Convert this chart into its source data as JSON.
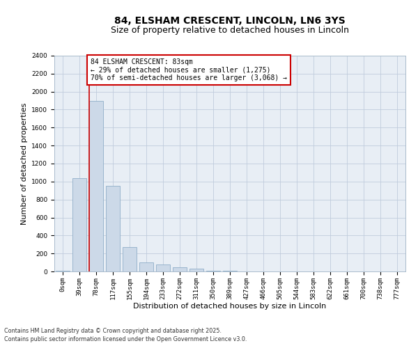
{
  "title_line1": "84, ELSHAM CRESCENT, LINCOLN, LN6 3YS",
  "title_line2": "Size of property relative to detached houses in Lincoln",
  "xlabel": "Distribution of detached houses by size in Lincoln",
  "ylabel": "Number of detached properties",
  "bar_color": "#ccd9e8",
  "bar_edge_color": "#90aec8",
  "vline_color": "#cc0000",
  "vline_position": 2,
  "categories": [
    "0sqm",
    "39sqm",
    "78sqm",
    "117sqm",
    "155sqm",
    "194sqm",
    "233sqm",
    "272sqm",
    "311sqm",
    "350sqm",
    "389sqm",
    "427sqm",
    "466sqm",
    "505sqm",
    "544sqm",
    "583sqm",
    "622sqm",
    "661sqm",
    "700sqm",
    "738sqm",
    "777sqm"
  ],
  "values": [
    10,
    1040,
    1900,
    950,
    270,
    100,
    75,
    50,
    30,
    10,
    5,
    2,
    1,
    1,
    0,
    0,
    0,
    0,
    0,
    0,
    0
  ],
  "ylim": [
    0,
    2400
  ],
  "yticks": [
    0,
    200,
    400,
    600,
    800,
    1000,
    1200,
    1400,
    1600,
    1800,
    2000,
    2200,
    2400
  ],
  "annotation_text": "84 ELSHAM CRESCENT: 83sqm\n← 29% of detached houses are smaller (1,275)\n70% of semi-detached houses are larger (3,068) →",
  "annotation_box_color": "#ffffff",
  "annotation_border_color": "#cc0000",
  "grid_color": "#c0ccdd",
  "bg_color": "#e8eef5",
  "footer1": "Contains HM Land Registry data © Crown copyright and database right 2025.",
  "footer2": "Contains public sector information licensed under the Open Government Licence v3.0.",
  "title_fontsize": 10,
  "subtitle_fontsize": 9,
  "tick_fontsize": 6.5,
  "label_fontsize": 8,
  "annot_fontsize": 7
}
